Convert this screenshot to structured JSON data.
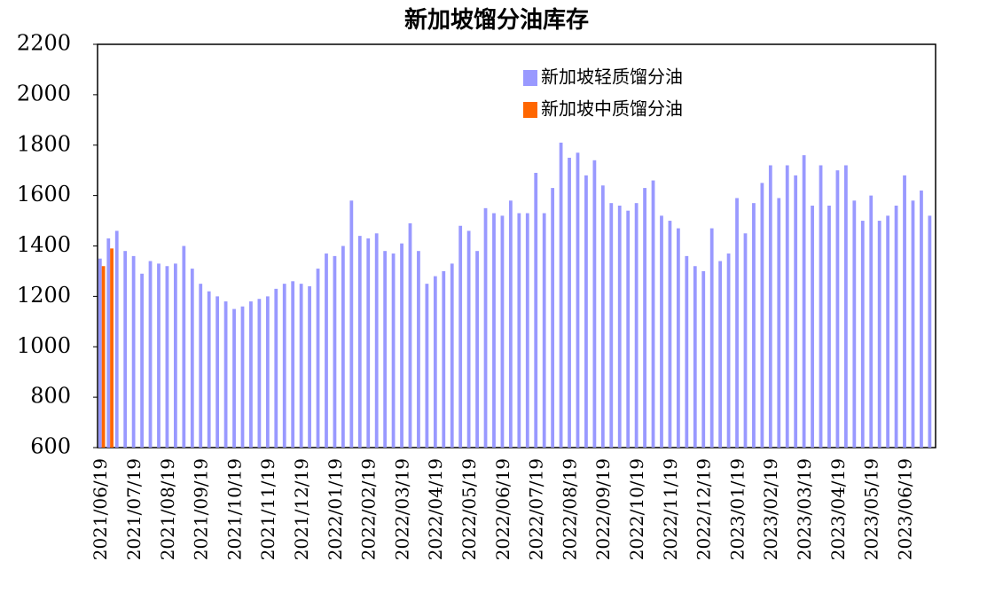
{
  "chart_data": {
    "type": "bar",
    "title": "新加坡馏分油库存",
    "categories": [
      "2021/06/19",
      null,
      null,
      null,
      "2021/07/19",
      null,
      null,
      null,
      "2021/08/19",
      null,
      null,
      null,
      "2021/09/19",
      null,
      null,
      null,
      "2021/10/19",
      null,
      null,
      null,
      "2021/11/19",
      null,
      null,
      null,
      "2021/12/19",
      null,
      null,
      null,
      "2022/01/19",
      null,
      null,
      null,
      "2022/02/19",
      null,
      null,
      null,
      "2022/03/19",
      null,
      null,
      null,
      "2022/04/19",
      null,
      null,
      null,
      "2022/05/19",
      null,
      null,
      null,
      "2022/06/19",
      null,
      null,
      null,
      "2022/07/19",
      null,
      null,
      null,
      "2022/08/19",
      null,
      null,
      null,
      "2022/09/19",
      null,
      null,
      null,
      "2022/10/19",
      null,
      null,
      null,
      "2022/11/19",
      null,
      null,
      null,
      "2022/12/19",
      null,
      null,
      null,
      "2023/01/19",
      null,
      null,
      null,
      "2023/02/19",
      null,
      null,
      null,
      "2023/03/19",
      null,
      null,
      null,
      "2023/04/19",
      null,
      null,
      null,
      "2023/05/19",
      null,
      null,
      null,
      "2023/06/19",
      null,
      null,
      null
    ],
    "series": [
      {
        "name": "新加坡轻质馏分油",
        "color": "#9999ff",
        "values": [
          1350,
          1430,
          1460,
          1380,
          1360,
          1290,
          1340,
          1330,
          1320,
          1330,
          1400,
          1310,
          1250,
          1220,
          1200,
          1180,
          1150,
          1160,
          1180,
          1190,
          1200,
          1230,
          1250,
          1260,
          1250,
          1240,
          1310,
          1370,
          1360,
          1400,
          1580,
          1440,
          1430,
          1450,
          1380,
          1370,
          1410,
          1490,
          1380,
          1250,
          1280,
          1300,
          1330,
          1480,
          1460,
          1380,
          1550,
          1530,
          1520,
          1580,
          1530,
          1530,
          1690,
          1530,
          1630,
          1810,
          1750,
          1770,
          1680,
          1740,
          1640,
          1570,
          1560,
          1540,
          1570,
          1630,
          1660,
          1520,
          1500,
          1470,
          1360,
          1320,
          1300,
          1470,
          1340,
          1370,
          1590,
          1450,
          1570,
          1650,
          1720,
          1590,
          1720,
          1680,
          1760,
          1560,
          1720,
          1560,
          1700,
          1720,
          1580,
          1500,
          1600,
          1500,
          1520,
          1560,
          1680,
          1580,
          1620,
          1520
        ]
      },
      {
        "name": "新加坡中质馏分油",
        "color": "#ff6600",
        "values": [
          1320,
          1390,
          null,
          null,
          null,
          null,
          null,
          null,
          null,
          null,
          null,
          null,
          null,
          null,
          null,
          null,
          null,
          null,
          null,
          null,
          null,
          null,
          null,
          null,
          null,
          null,
          null,
          null,
          null,
          null,
          null,
          null,
          null,
          null,
          null,
          null,
          null,
          null,
          null,
          null,
          null,
          null,
          null,
          null,
          null,
          null,
          null,
          null,
          null,
          null,
          null,
          null,
          null,
          null,
          null,
          null,
          null,
          null,
          null,
          null,
          null,
          null,
          null,
          null,
          null,
          null,
          null,
          null,
          null,
          null,
          null,
          null,
          null,
          null,
          null,
          null,
          null,
          null,
          null,
          null,
          null,
          null,
          null,
          null,
          null,
          null,
          null,
          null,
          null,
          null,
          null,
          null,
          null,
          null,
          null,
          null,
          null,
          null,
          null,
          null
        ]
      }
    ],
    "ylim": [
      600,
      2200
    ],
    "yticks": [
      600,
      800,
      1000,
      1200,
      1400,
      1600,
      1800,
      2000,
      2200
    ]
  }
}
